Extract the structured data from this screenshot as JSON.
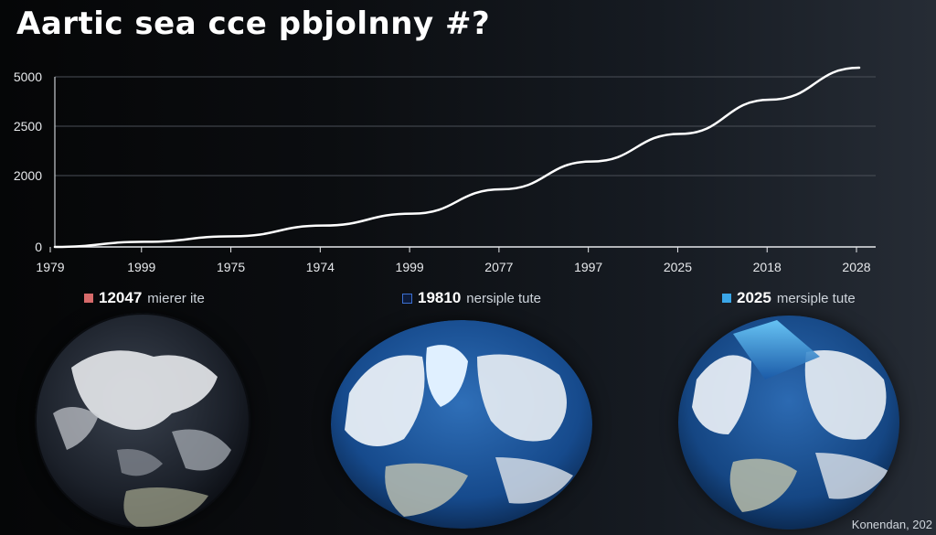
{
  "title": "Aartic sea cce pbjolnny #?",
  "chart_data": {
    "type": "line",
    "x_tick_labels": [
      "1979",
      "1999",
      "1975",
      "1974",
      "1999",
      "2077",
      "1997",
      "2025",
      "2018",
      "2028"
    ],
    "y_tick_labels": [
      "0",
      "2000",
      "2500",
      "5000"
    ],
    "series": [
      {
        "values": [
          0,
          1.2,
          2.5,
          5.0,
          7.8,
          13.5,
          20.0,
          26.5,
          34.5,
          42.0
        ]
      }
    ],
    "grid": true,
    "line_color": "#ffffff"
  },
  "globes": [
    {
      "swatch_color": "#d66a6a",
      "year": "12047",
      "text": "mierer ite"
    },
    {
      "swatch_color": "#1a3d8a",
      "year": "19810",
      "text": "nersiple tute"
    },
    {
      "swatch_color": "#3aa6e8",
      "year": "2025",
      "text": "mersiple tute"
    }
  ],
  "credit": "Konendan, 202"
}
